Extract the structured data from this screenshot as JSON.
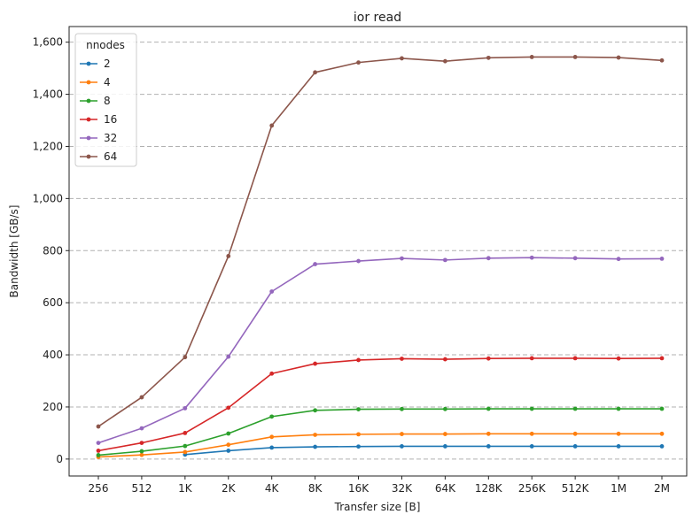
{
  "chart_data": {
    "type": "line",
    "title": "ior read",
    "xlabel": "Transfer size [B]",
    "ylabel": "Bandwidth [GB/s]",
    "categories": [
      "256",
      "512",
      "1K",
      "2K",
      "4K",
      "8K",
      "16K",
      "32K",
      "64K",
      "128K",
      "256K",
      "512K",
      "1M",
      "2M"
    ],
    "ylim": [
      -65,
      1660
    ],
    "yticks": [
      0,
      200,
      400,
      600,
      800,
      1000,
      1200,
      1400,
      1600
    ],
    "ytick_labels": [
      "0",
      "200",
      "400",
      "600",
      "800",
      "1,000",
      "1,200",
      "1,400",
      "1,600"
    ],
    "grid": "horizontal-dashed",
    "legend": {
      "title": "nnodes",
      "placement": "top-left"
    },
    "series": [
      {
        "name": "2",
        "color": "#1f77b4",
        "values": [
          null,
          null,
          17,
          32,
          44,
          47,
          48,
          49,
          49,
          49,
          49,
          49,
          49,
          49
        ]
      },
      {
        "name": "4",
        "color": "#ff7f0e",
        "values": [
          8,
          16,
          27,
          55,
          85,
          93,
          95,
          96,
          96,
          97,
          97,
          97,
          97,
          97
        ]
      },
      {
        "name": "8",
        "color": "#2ca02c",
        "values": [
          15,
          30,
          50,
          98,
          163,
          187,
          191,
          192,
          192,
          193,
          193,
          193,
          193,
          193
        ]
      },
      {
        "name": "16",
        "color": "#d62728",
        "values": [
          32,
          62,
          100,
          197,
          328,
          366,
          380,
          385,
          383,
          386,
          387,
          387,
          386,
          387
        ]
      },
      {
        "name": "32",
        "color": "#9467bd",
        "values": [
          62,
          118,
          195,
          393,
          643,
          748,
          760,
          770,
          764,
          771,
          773,
          771,
          768,
          769
        ]
      },
      {
        "name": "64",
        "color": "#8c564b",
        "values": [
          125,
          237,
          391,
          779,
          1280,
          1484,
          1522,
          1538,
          1527,
          1540,
          1543,
          1543,
          1541,
          1530
        ]
      }
    ]
  }
}
